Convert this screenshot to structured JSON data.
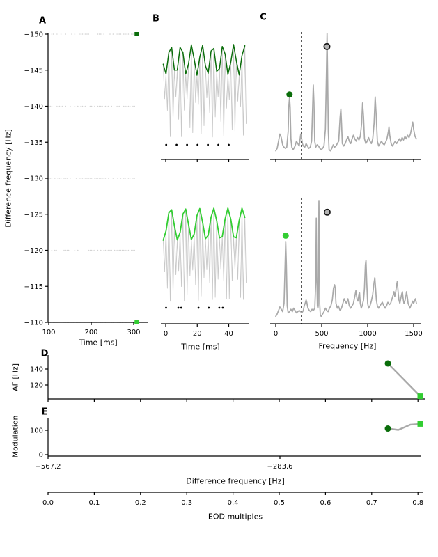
{
  "colors": {
    "dark_green": "#0a6d0a",
    "light_green": "#32cd32",
    "waveform_gray": "#c8c8c8",
    "spectrum_gray": "#a9a9a9",
    "event_dot_gray": "#d2d2d2",
    "connector_gray": "#a9a9a9",
    "open_marker_fill": "#b4b4b4",
    "axis_black": "#000000",
    "spike_black": "#000000"
  },
  "panel_labels": {
    "A": "A",
    "B": "B",
    "C": "C",
    "D": "D",
    "E": "E"
  },
  "axis_labels": {
    "shared_y": "Difference frequency [Hz]",
    "a_x": "Time [ms]",
    "b_x": "Time [ms]",
    "c_x": "Frequency [Hz]",
    "d_y": "AF [Hz]",
    "e_y": "Modulation",
    "e_x": "Difference frequency [Hz]",
    "eod_x": "EOD multiples"
  },
  "chart_data": [
    {
      "id": "A",
      "type": "scatter",
      "xlabel": "Time [ms]",
      "ylabel": "Difference frequency [Hz]",
      "xlim": [
        98,
        335
      ],
      "ylim": [
        -150,
        -110
      ],
      "y_axis_inverted": true,
      "x_ticks": [
        100,
        200,
        300
      ],
      "y_ticks": [
        -150,
        -145,
        -140,
        -135,
        -130,
        -125,
        -120,
        -115,
        -110
      ],
      "event_rows_df_hz": [
        -150,
        -140,
        -130,
        -120,
        -110
      ],
      "event_span_ms": [
        100,
        305
      ],
      "markers": [
        {
          "time_ms": 307,
          "df_hz": -150,
          "color_key": "dark_green",
          "shape": "square"
        },
        {
          "time_ms": 307,
          "df_hz": -110,
          "color_key": "light_green",
          "shape": "square"
        }
      ]
    },
    {
      "id": "B-top",
      "type": "line",
      "xlim": [
        -2,
        50
      ],
      "x_ticks": [
        0,
        20,
        40
      ],
      "x_tick_labels_shown": false,
      "carrier_eod_hz": 560,
      "beat_am_hz": 150,
      "envelope_color_key": "dark_green",
      "spike_times_ms": [
        0.3,
        6.9,
        13.5,
        20.2,
        26.8,
        33.4,
        40.0
      ]
    },
    {
      "id": "B-bottom",
      "type": "line",
      "xlabel": "Time [ms]",
      "xlim": [
        -2,
        50
      ],
      "x_ticks": [
        0,
        20,
        40
      ],
      "x_tick_labels_shown": true,
      "carrier_eod_hz": 560,
      "beat_am_hz": 110,
      "envelope_color_key": "light_green",
      "spike_times_ms": [
        0.2,
        8.0,
        9.8,
        20.8,
        27.3,
        34.0,
        36.2
      ]
    },
    {
      "id": "C-top",
      "type": "line",
      "xlim": [
        0,
        1600
      ],
      "ylim": [
        0,
        1.05
      ],
      "x_ticks": [
        0,
        500,
        1000,
        1500
      ],
      "x_tick_labels_shown": false,
      "dashed_vline_hz": 278,
      "markers": [
        {
          "hz": 150,
          "amp": 0.49,
          "style": "filled",
          "color_key": "dark_green"
        },
        {
          "hz": 557,
          "amp": 0.89,
          "style": "open",
          "color_key": "open_marker_fill"
        }
      ],
      "spectrum": [
        [
          0,
          0.02
        ],
        [
          15,
          0.04
        ],
        [
          30,
          0.1
        ],
        [
          45,
          0.16
        ],
        [
          60,
          0.13
        ],
        [
          75,
          0.07
        ],
        [
          90,
          0.05
        ],
        [
          105,
          0.04
        ],
        [
          120,
          0.05
        ],
        [
          135,
          0.18
        ],
        [
          143,
          0.4
        ],
        [
          150,
          0.47
        ],
        [
          157,
          0.38
        ],
        [
          165,
          0.12
        ],
        [
          175,
          0.05
        ],
        [
          190,
          0.03
        ],
        [
          210,
          0.06
        ],
        [
          225,
          0.1
        ],
        [
          240,
          0.08
        ],
        [
          255,
          0.06
        ],
        [
          265,
          0.12
        ],
        [
          272,
          0.16
        ],
        [
          280,
          0.13
        ],
        [
          290,
          0.08
        ],
        [
          300,
          0.06
        ],
        [
          315,
          0.05
        ],
        [
          330,
          0.08
        ],
        [
          345,
          0.06
        ],
        [
          360,
          0.04
        ],
        [
          375,
          0.05
        ],
        [
          390,
          0.1
        ],
        [
          400,
          0.35
        ],
        [
          408,
          0.57
        ],
        [
          416,
          0.42
        ],
        [
          424,
          0.1
        ],
        [
          435,
          0.05
        ],
        [
          450,
          0.07
        ],
        [
          465,
          0.06
        ],
        [
          480,
          0.04
        ],
        [
          495,
          0.03
        ],
        [
          510,
          0.04
        ],
        [
          525,
          0.06
        ],
        [
          540,
          0.2
        ],
        [
          552,
          0.7
        ],
        [
          558,
          1.0
        ],
        [
          564,
          0.72
        ],
        [
          572,
          0.18
        ],
        [
          580,
          0.03
        ],
        [
          595,
          0.02
        ],
        [
          610,
          0.04
        ],
        [
          625,
          0.07
        ],
        [
          640,
          0.05
        ],
        [
          655,
          0.06
        ],
        [
          670,
          0.08
        ],
        [
          685,
          0.1
        ],
        [
          700,
          0.3
        ],
        [
          708,
          0.37
        ],
        [
          716,
          0.25
        ],
        [
          724,
          0.08
        ],
        [
          740,
          0.06
        ],
        [
          755,
          0.08
        ],
        [
          770,
          0.11
        ],
        [
          785,
          0.14
        ],
        [
          800,
          0.1
        ],
        [
          815,
          0.08
        ],
        [
          830,
          0.12
        ],
        [
          845,
          0.15
        ],
        [
          860,
          0.12
        ],
        [
          875,
          0.1
        ],
        [
          890,
          0.13
        ],
        [
          905,
          0.11
        ],
        [
          920,
          0.14
        ],
        [
          935,
          0.25
        ],
        [
          945,
          0.42
        ],
        [
          955,
          0.3
        ],
        [
          965,
          0.12
        ],
        [
          980,
          0.08
        ],
        [
          995,
          0.1
        ],
        [
          1010,
          0.13
        ],
        [
          1025,
          0.1
        ],
        [
          1040,
          0.08
        ],
        [
          1055,
          0.12
        ],
        [
          1070,
          0.25
        ],
        [
          1082,
          0.47
        ],
        [
          1094,
          0.3
        ],
        [
          1105,
          0.1
        ],
        [
          1120,
          0.06
        ],
        [
          1135,
          0.08
        ],
        [
          1150,
          0.1
        ],
        [
          1165,
          0.08
        ],
        [
          1180,
          0.07
        ],
        [
          1195,
          0.09
        ],
        [
          1210,
          0.12
        ],
        [
          1225,
          0.18
        ],
        [
          1232,
          0.22
        ],
        [
          1240,
          0.15
        ],
        [
          1255,
          0.08
        ],
        [
          1270,
          0.06
        ],
        [
          1285,
          0.08
        ],
        [
          1300,
          0.1
        ],
        [
          1315,
          0.08
        ],
        [
          1330,
          0.1
        ],
        [
          1345,
          0.12
        ],
        [
          1360,
          0.1
        ],
        [
          1375,
          0.13
        ],
        [
          1390,
          0.11
        ],
        [
          1405,
          0.14
        ],
        [
          1420,
          0.12
        ],
        [
          1435,
          0.15
        ],
        [
          1450,
          0.13
        ],
        [
          1465,
          0.16
        ],
        [
          1480,
          0.22
        ],
        [
          1490,
          0.26
        ],
        [
          1500,
          0.2
        ],
        [
          1515,
          0.14
        ],
        [
          1530,
          0.12
        ]
      ]
    },
    {
      "id": "C-bottom",
      "type": "line",
      "xlabel": "Frequency [Hz]",
      "xlim": [
        0,
        1600
      ],
      "ylim": [
        0,
        1.05
      ],
      "x_ticks": [
        0,
        500,
        1000,
        1500
      ],
      "x_tick_labels_shown": true,
      "dashed_vline_hz": 278,
      "markers": [
        {
          "hz": 108,
          "amp": 0.7,
          "style": "filled",
          "color_key": "light_green"
        },
        {
          "hz": 560,
          "amp": 0.9,
          "style": "open",
          "color_key": "open_marker_fill"
        }
      ],
      "spectrum": [
        [
          0,
          0.01
        ],
        [
          15,
          0.03
        ],
        [
          30,
          0.06
        ],
        [
          45,
          0.09
        ],
        [
          60,
          0.07
        ],
        [
          75,
          0.05
        ],
        [
          90,
          0.12
        ],
        [
          100,
          0.4
        ],
        [
          108,
          0.65
        ],
        [
          116,
          0.45
        ],
        [
          124,
          0.1
        ],
        [
          135,
          0.04
        ],
        [
          150,
          0.05
        ],
        [
          165,
          0.07
        ],
        [
          180,
          0.05
        ],
        [
          195,
          0.08
        ],
        [
          210,
          0.06
        ],
        [
          225,
          0.04
        ],
        [
          240,
          0.05
        ],
        [
          255,
          0.06
        ],
        [
          270,
          0.05
        ],
        [
          285,
          0.04
        ],
        [
          300,
          0.06
        ],
        [
          310,
          0.1
        ],
        [
          320,
          0.12
        ],
        [
          330,
          0.15
        ],
        [
          338,
          0.13
        ],
        [
          350,
          0.08
        ],
        [
          365,
          0.06
        ],
        [
          380,
          0.05
        ],
        [
          395,
          0.07
        ],
        [
          410,
          0.06
        ],
        [
          425,
          0.08
        ],
        [
          435,
          0.3
        ],
        [
          441,
          0.85
        ],
        [
          447,
          0.35
        ],
        [
          453,
          0.1
        ],
        [
          458,
          0.08
        ],
        [
          462,
          0.1
        ],
        [
          466,
          0.6
        ],
        [
          470,
          1.0
        ],
        [
          474,
          0.6
        ],
        [
          478,
          0.12
        ],
        [
          485,
          0.02
        ],
        [
          495,
          0.01
        ],
        [
          510,
          0.03
        ],
        [
          525,
          0.05
        ],
        [
          540,
          0.08
        ],
        [
          555,
          0.06
        ],
        [
          570,
          0.05
        ],
        [
          585,
          0.08
        ],
        [
          600,
          0.1
        ],
        [
          615,
          0.15
        ],
        [
          628,
          0.25
        ],
        [
          640,
          0.28
        ],
        [
          647,
          0.25
        ],
        [
          655,
          0.12
        ],
        [
          670,
          0.08
        ],
        [
          680,
          0.1
        ],
        [
          690,
          0.08
        ],
        [
          700,
          0.06
        ],
        [
          715,
          0.08
        ],
        [
          730,
          0.12
        ],
        [
          745,
          0.16
        ],
        [
          755,
          0.14
        ],
        [
          770,
          0.12
        ],
        [
          785,
          0.16
        ],
        [
          790,
          0.14
        ],
        [
          800,
          0.1
        ],
        [
          815,
          0.08
        ],
        [
          830,
          0.1
        ],
        [
          845,
          0.12
        ],
        [
          860,
          0.18
        ],
        [
          872,
          0.23
        ],
        [
          884,
          0.16
        ],
        [
          895,
          0.14
        ],
        [
          905,
          0.2
        ],
        [
          912,
          0.21
        ],
        [
          920,
          0.12
        ],
        [
          930,
          0.08
        ],
        [
          940,
          0.1
        ],
        [
          955,
          0.15
        ],
        [
          965,
          0.25
        ],
        [
          975,
          0.45
        ],
        [
          982,
          0.49
        ],
        [
          990,
          0.3
        ],
        [
          1000,
          0.12
        ],
        [
          1010,
          0.08
        ],
        [
          1025,
          0.1
        ],
        [
          1040,
          0.14
        ],
        [
          1055,
          0.2
        ],
        [
          1070,
          0.3
        ],
        [
          1078,
          0.34
        ],
        [
          1086,
          0.25
        ],
        [
          1095,
          0.15
        ],
        [
          1105,
          0.1
        ],
        [
          1120,
          0.08
        ],
        [
          1135,
          0.1
        ],
        [
          1150,
          0.12
        ],
        [
          1160,
          0.13
        ],
        [
          1175,
          0.1
        ],
        [
          1190,
          0.08
        ],
        [
          1205,
          0.1
        ],
        [
          1220,
          0.13
        ],
        [
          1235,
          0.11
        ],
        [
          1250,
          0.12
        ],
        [
          1265,
          0.16
        ],
        [
          1280,
          0.2
        ],
        [
          1286,
          0.22
        ],
        [
          1295,
          0.18
        ],
        [
          1305,
          0.22
        ],
        [
          1315,
          0.28
        ],
        [
          1323,
          0.31
        ],
        [
          1331,
          0.22
        ],
        [
          1340,
          0.15
        ],
        [
          1350,
          0.12
        ],
        [
          1360,
          0.16
        ],
        [
          1370,
          0.2
        ],
        [
          1378,
          0.22
        ],
        [
          1386,
          0.16
        ],
        [
          1395,
          0.12
        ],
        [
          1405,
          0.14
        ],
        [
          1415,
          0.18
        ],
        [
          1423,
          0.22
        ],
        [
          1431,
          0.18
        ],
        [
          1440,
          0.12
        ],
        [
          1450,
          0.1
        ],
        [
          1460,
          0.08
        ],
        [
          1470,
          0.1
        ],
        [
          1480,
          0.12
        ],
        [
          1490,
          0.14
        ],
        [
          1500,
          0.12
        ],
        [
          1510,
          0.14
        ],
        [
          1520,
          0.16
        ],
        [
          1530,
          0.12
        ]
      ]
    },
    {
      "id": "D",
      "type": "line",
      "ylabel": "AF [Hz]",
      "y_ticks": [
        140,
        120
      ],
      "x_ticks_eod_multiples": [
        0,
        0.1,
        0.2,
        0.3,
        0.4,
        0.5,
        0.6,
        0.7,
        0.8
      ],
      "x_tick_labels_shown": false,
      "points": [
        {
          "eod_multiple": 0.735,
          "value": 147,
          "marker": "dot",
          "color_key": "dark_green"
        },
        {
          "eod_multiple": 0.805,
          "value": 106,
          "marker": "square",
          "color_key": "light_green"
        }
      ]
    },
    {
      "id": "E",
      "type": "line",
      "ylabel": "Modulation",
      "xlabel": "Difference frequency [Hz]",
      "y_ticks": [
        100,
        0
      ],
      "x_ticks": [
        {
          "df_hz": -567.2,
          "label": "−567.2"
        },
        {
          "df_hz": -283.6,
          "label": "−283.6"
        }
      ],
      "points": [
        {
          "eod_multiple": 0.735,
          "value": 107,
          "marker": "dot",
          "color_key": "dark_green"
        },
        {
          "eod_multiple": 0.805,
          "value": 126,
          "marker": "square",
          "color_key": "light_green"
        }
      ]
    },
    {
      "id": "EOD-axis",
      "type": "axis",
      "xlabel": "EOD multiples",
      "tick_labels": [
        "0.0",
        "0.1",
        "0.2",
        "0.3",
        "0.4",
        "0.5",
        "0.6",
        "0.7",
        "0.8"
      ],
      "tick_values": [
        0,
        0.1,
        0.2,
        0.3,
        0.4,
        0.5,
        0.6,
        0.7,
        0.8
      ]
    }
  ]
}
